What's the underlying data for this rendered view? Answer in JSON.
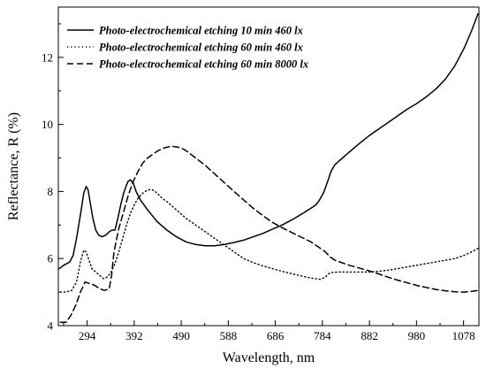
{
  "chart_data": {
    "type": "line",
    "title": "",
    "xlabel": "Wavelength, nm",
    "ylabel": "Reflectance, R (%)",
    "xlim": [
      234,
      1110
    ],
    "ylim": [
      4,
      13.5
    ],
    "xticks": [
      294,
      392,
      490,
      588,
      686,
      784,
      882,
      980,
      1078
    ],
    "yticks": [
      4,
      6,
      8,
      10,
      12
    ],
    "grid": false,
    "legend_position": "top-left",
    "series": [
      {
        "name": "Photo-electrochemical etching 10 min 460 lx",
        "style": "solid",
        "x": [
          236,
          245,
          258,
          265,
          272,
          280,
          287,
          292,
          296,
          300,
          306,
          312,
          318,
          325,
          333,
          340,
          346,
          352,
          358,
          364,
          370,
          375,
          379,
          384,
          390,
          396,
          405,
          420,
          440,
          460,
          480,
          500,
          520,
          540,
          560,
          580,
          600,
          620,
          640,
          660,
          680,
          700,
          720,
          740,
          760,
          770,
          776,
          782,
          786,
          790,
          796,
          802,
          810,
          818,
          826,
          834,
          842,
          850,
          860,
          880,
          900,
          920,
          940,
          960,
          980,
          1000,
          1020,
          1040,
          1060,
          1080,
          1095,
          1108
        ],
        "values": [
          5.7,
          5.8,
          5.9,
          6.1,
          6.6,
          7.3,
          7.95,
          8.15,
          8.05,
          7.7,
          7.2,
          6.85,
          6.7,
          6.65,
          6.7,
          6.8,
          6.85,
          6.85,
          7.2,
          7.6,
          7.95,
          8.15,
          8.3,
          8.35,
          8.25,
          8.0,
          7.75,
          7.45,
          7.1,
          6.85,
          6.65,
          6.5,
          6.42,
          6.38,
          6.38,
          6.42,
          6.48,
          6.55,
          6.65,
          6.75,
          6.88,
          7.0,
          7.15,
          7.32,
          7.5,
          7.6,
          7.7,
          7.85,
          7.95,
          8.1,
          8.35,
          8.6,
          8.8,
          8.9,
          9.0,
          9.1,
          9.2,
          9.3,
          9.42,
          9.65,
          9.85,
          10.05,
          10.25,
          10.45,
          10.62,
          10.82,
          11.05,
          11.35,
          11.75,
          12.3,
          12.8,
          13.3
        ]
      },
      {
        "name": "Photo-electrochemical etching 60 min 460 lx",
        "style": "dotted",
        "x": [
          238,
          250,
          262,
          272,
          280,
          287,
          292,
          298,
          304,
          312,
          320,
          328,
          336,
          344,
          352,
          360,
          368,
          376,
          384,
          392,
          400,
          410,
          420,
          430,
          440,
          450,
          460,
          480,
          500,
          520,
          540,
          560,
          580,
          600,
          620,
          640,
          660,
          680,
          700,
          720,
          740,
          760,
          780,
          790,
          800,
          820,
          840,
          860,
          880,
          900,
          920,
          940,
          960,
          980,
          1000,
          1020,
          1040,
          1060,
          1080,
          1095,
          1108
        ],
        "values": [
          5.0,
          5.0,
          5.05,
          5.3,
          5.9,
          6.25,
          6.2,
          5.95,
          5.7,
          5.6,
          5.5,
          5.4,
          5.45,
          5.6,
          5.85,
          6.2,
          6.6,
          7.0,
          7.35,
          7.6,
          7.8,
          7.95,
          8.05,
          8.05,
          7.95,
          7.8,
          7.7,
          7.45,
          7.2,
          7.0,
          6.8,
          6.6,
          6.4,
          6.2,
          6.0,
          5.88,
          5.78,
          5.7,
          5.62,
          5.55,
          5.48,
          5.42,
          5.38,
          5.45,
          5.58,
          5.6,
          5.6,
          5.6,
          5.6,
          5.62,
          5.65,
          5.7,
          5.75,
          5.8,
          5.85,
          5.9,
          5.95,
          6.0,
          6.1,
          6.2,
          6.3
        ]
      },
      {
        "name": "Photo-electrochemical etching 60 min 8000 lx",
        "style": "dashed",
        "x": [
          238,
          250,
          260,
          270,
          280,
          290,
          300,
          310,
          320,
          330,
          340,
          345,
          350,
          360,
          370,
          380,
          390,
          400,
          410,
          420,
          430,
          440,
          450,
          460,
          470,
          480,
          490,
          500,
          520,
          540,
          560,
          580,
          600,
          620,
          640,
          660,
          680,
          700,
          720,
          740,
          760,
          780,
          790,
          800,
          810,
          820,
          840,
          860,
          880,
          900,
          920,
          940,
          960,
          980,
          1000,
          1020,
          1040,
          1060,
          1080,
          1095,
          1108
        ],
        "values": [
          4.1,
          4.1,
          4.3,
          4.6,
          5.0,
          5.3,
          5.25,
          5.2,
          5.1,
          5.05,
          5.1,
          5.5,
          6.2,
          6.9,
          7.4,
          7.9,
          8.3,
          8.6,
          8.85,
          9.0,
          9.1,
          9.2,
          9.28,
          9.32,
          9.35,
          9.33,
          9.3,
          9.22,
          9.0,
          8.78,
          8.52,
          8.26,
          8.0,
          7.75,
          7.5,
          7.28,
          7.08,
          6.92,
          6.78,
          6.64,
          6.5,
          6.3,
          6.2,
          6.05,
          5.95,
          5.9,
          5.8,
          5.72,
          5.64,
          5.55,
          5.45,
          5.36,
          5.28,
          5.2,
          5.14,
          5.08,
          5.04,
          5.01,
          5.0,
          5.02,
          5.05
        ]
      }
    ]
  }
}
